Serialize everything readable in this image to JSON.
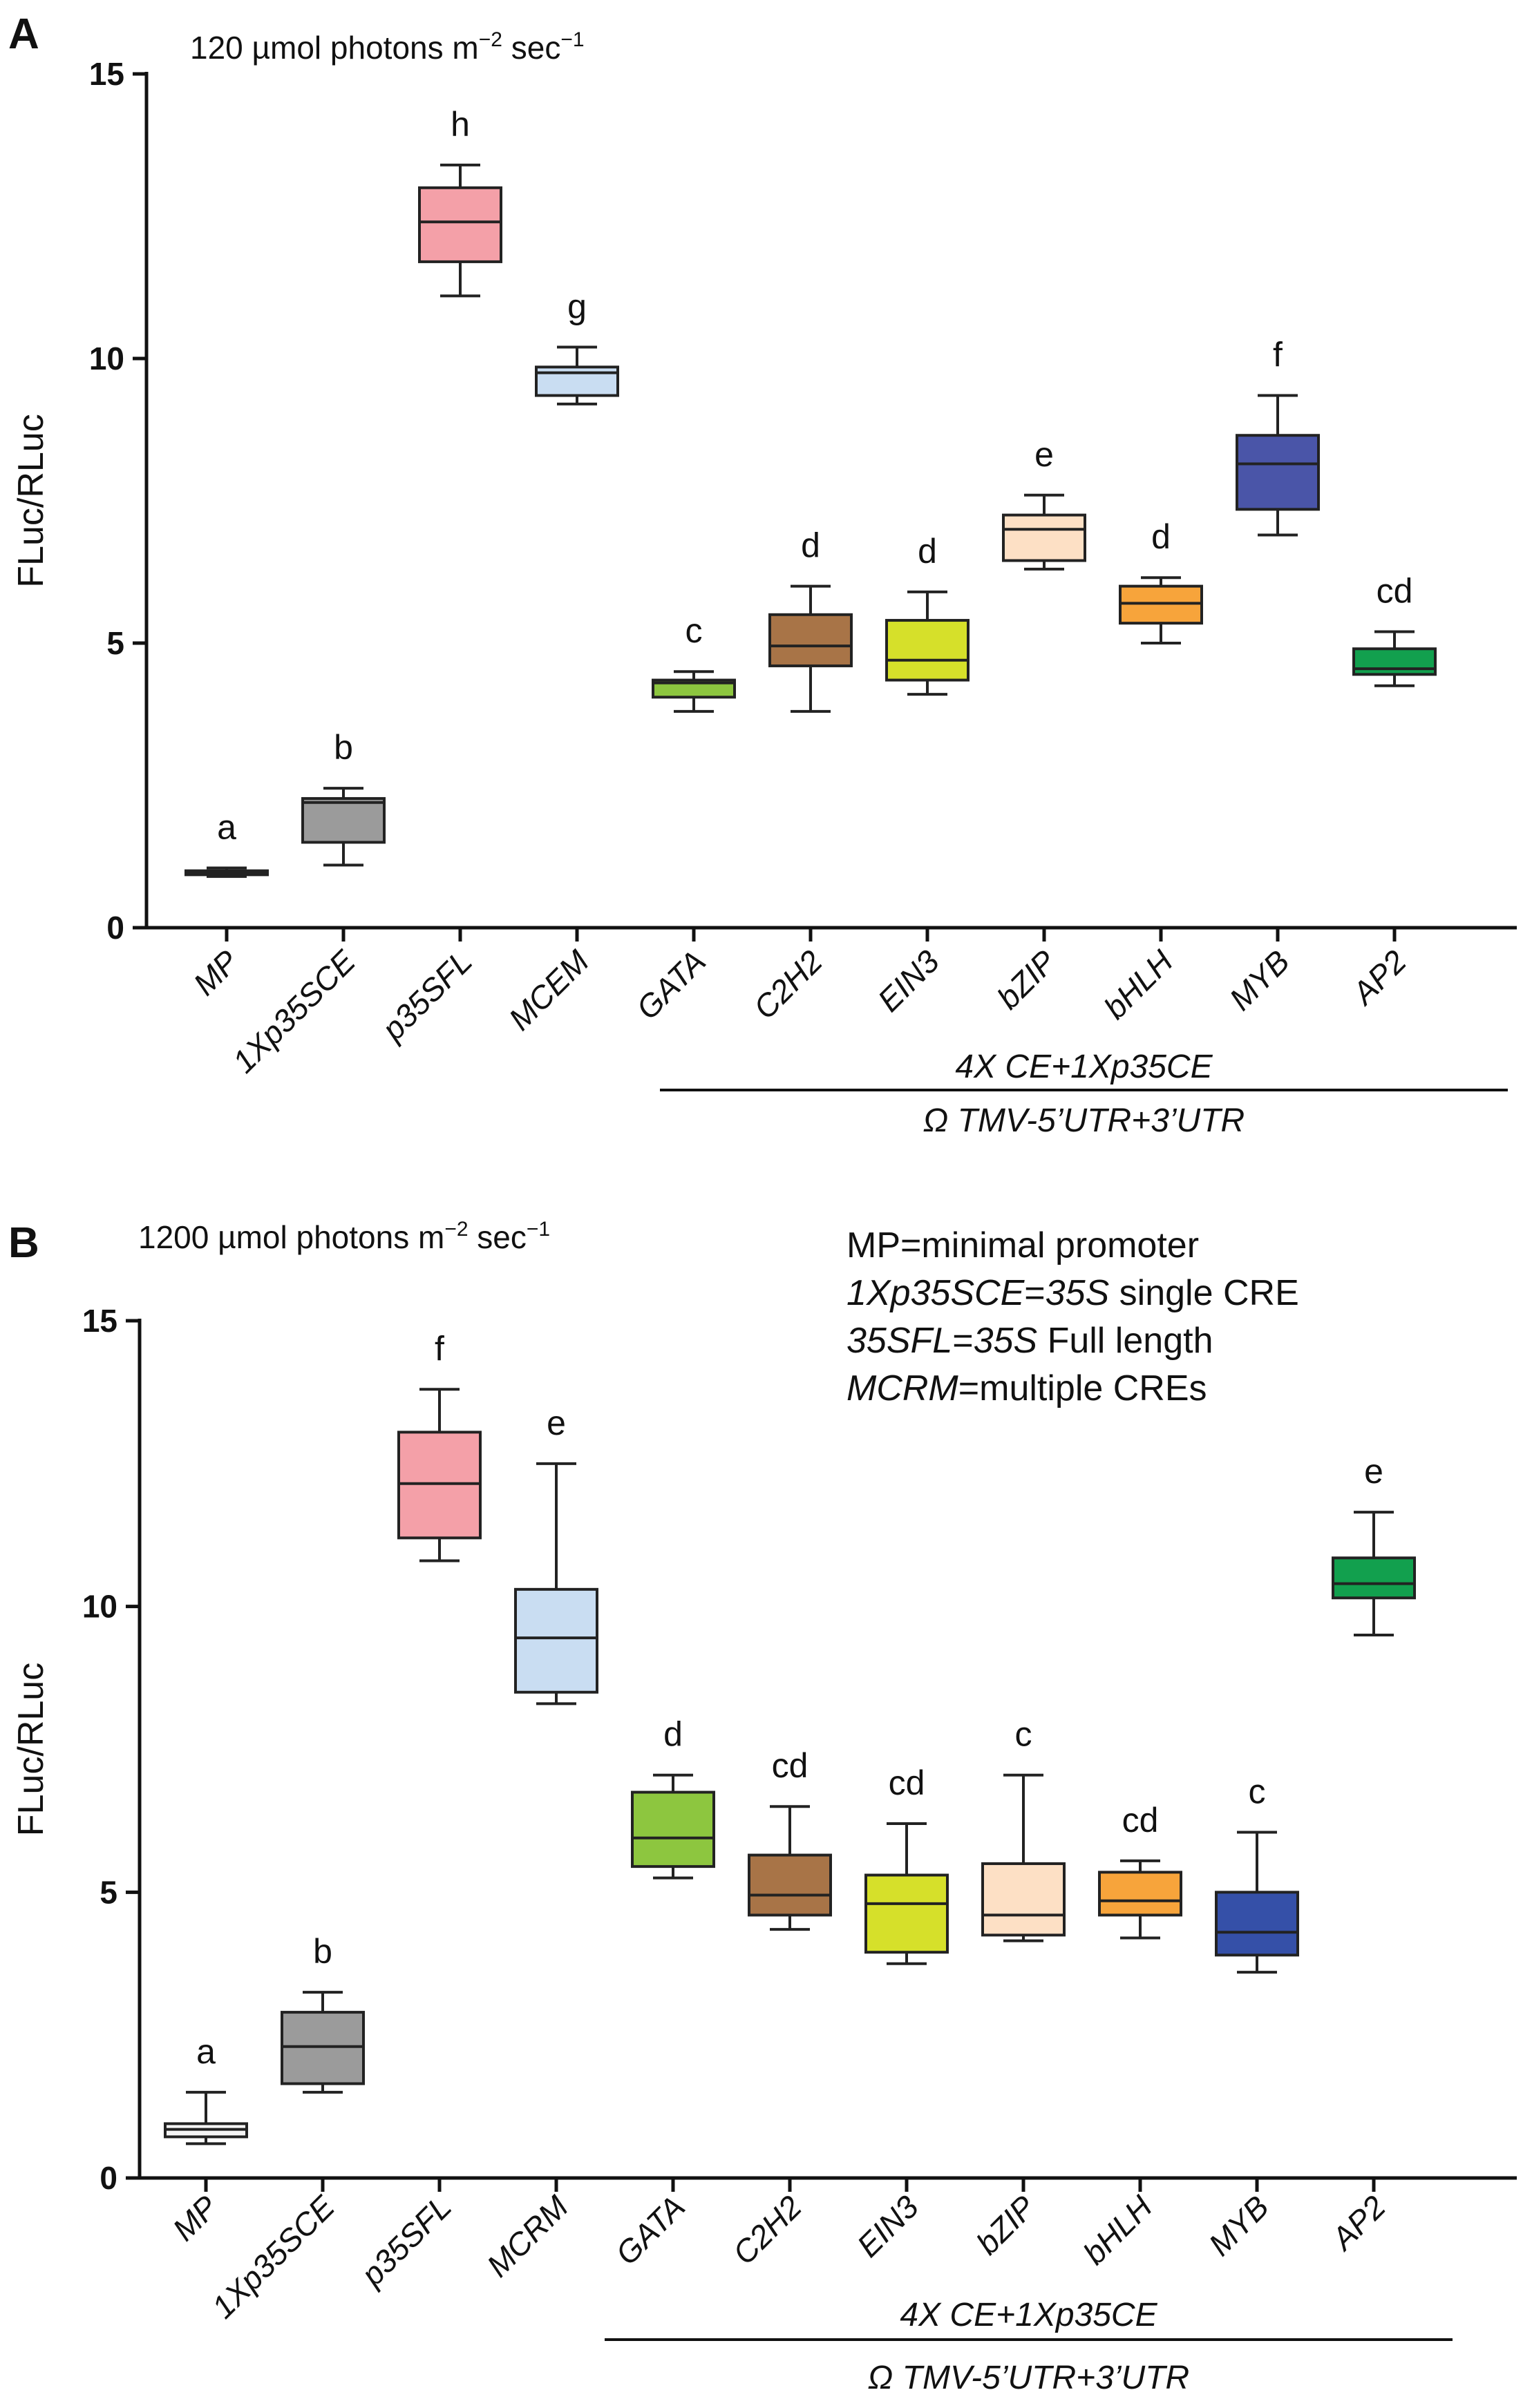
{
  "chart_data": [
    {
      "type": "box",
      "panel": "A",
      "light_condition": {
        "prefix": "120 µmol photons m",
        "exp1": "−2",
        "mid": " sec",
        "exp2": "−1"
      },
      "ylabel": "FLuc/RLuc",
      "ylim": [
        0,
        15
      ],
      "yticks": [
        0,
        5,
        10,
        15
      ],
      "group_label_top": "4X CE+1Xp35CE",
      "group_label_bottom": "Ω TMV-5’UTR+3’UTR",
      "categories": [
        "MP",
        "1Xp35SCE",
        "p35SFL",
        "MCEM",
        "GATA",
        "C2H2",
        "EIN3",
        "bZIP",
        "bHLH",
        "MYB",
        "AP2"
      ],
      "boxes": [
        {
          "name": "MP",
          "min": 0.9,
          "q1": 0.93,
          "median": 0.97,
          "q3": 1.0,
          "max": 1.05,
          "letter": "a",
          "color": "#f5f5f5"
        },
        {
          "name": "1Xp35SCE",
          "min": 1.1,
          "q1": 1.5,
          "median": 2.2,
          "q3": 2.27,
          "max": 2.45,
          "letter": "b",
          "color": "#9b9b9b"
        },
        {
          "name": "p35SFL",
          "min": 11.1,
          "q1": 11.7,
          "median": 12.4,
          "q3": 13.0,
          "max": 13.4,
          "letter": "h",
          "color": "#f4a0a8"
        },
        {
          "name": "MCEM",
          "min": 9.2,
          "q1": 9.35,
          "median": 9.75,
          "q3": 9.85,
          "max": 10.2,
          "letter": "g",
          "color": "#c9ddf2"
        },
        {
          "name": "GATA",
          "min": 3.8,
          "q1": 4.05,
          "median": 4.3,
          "q3": 4.35,
          "max": 4.5,
          "letter": "c",
          "color": "#8dc63f"
        },
        {
          "name": "C2H2",
          "min": 3.8,
          "q1": 4.6,
          "median": 4.95,
          "q3": 5.5,
          "max": 6.0,
          "letter": "d",
          "color": "#a87447"
        },
        {
          "name": "EIN3",
          "min": 4.1,
          "q1": 4.35,
          "median": 4.7,
          "q3": 5.4,
          "max": 5.9,
          "letter": "d",
          "color": "#d6e02a"
        },
        {
          "name": "bZIP",
          "min": 6.3,
          "q1": 6.45,
          "median": 7.0,
          "q3": 7.25,
          "max": 7.6,
          "letter": "e",
          "color": "#fde0c5"
        },
        {
          "name": "bHLH",
          "min": 5.0,
          "q1": 5.35,
          "median": 5.7,
          "q3": 6.0,
          "max": 6.15,
          "letter": "d",
          "color": "#f7a43b"
        },
        {
          "name": "MYB",
          "min": 6.9,
          "q1": 7.35,
          "median": 8.15,
          "q3": 8.65,
          "max": 9.35,
          "letter": "f",
          "color": "#4a55a8"
        },
        {
          "name": "AP2",
          "min": 4.25,
          "q1": 4.45,
          "median": 4.55,
          "q3": 4.9,
          "max": 5.2,
          "letter": "cd",
          "color": "#12a04e"
        }
      ]
    },
    {
      "type": "box",
      "panel": "B",
      "light_condition": {
        "prefix": "1200 µmol photons m",
        "exp1": "−2",
        "mid": " sec",
        "exp2": "−1"
      },
      "ylabel": "FLuc/RLuc",
      "ylim": [
        0,
        15
      ],
      "yticks": [
        0,
        5,
        10,
        15
      ],
      "group_label_top": "4X CE+1Xp35CE",
      "group_label_bottom": "Ω TMV-5’UTR+3’UTR",
      "legend": [
        {
          "abbr": "MP",
          "eq": "=",
          "def": "minimal promoter"
        },
        {
          "abbr": "1Xp35SCE",
          "eq": "=",
          "def_italic": "35S",
          "def": " single CRE"
        },
        {
          "abbr": "35SFL",
          "eq": "=",
          "def_italic": "35S",
          "def": " Full length"
        },
        {
          "abbr": "MCRM",
          "eq": "=",
          "def": "multiple CREs"
        }
      ],
      "categories": [
        "MP",
        "1Xp35SCE",
        "p35SFL",
        "MCRM",
        "GATA",
        "C2H2",
        "EIN3",
        "bZIP",
        "bHLH",
        "MYB",
        "AP2"
      ],
      "boxes": [
        {
          "name": "MP",
          "min": 0.6,
          "q1": 0.72,
          "median": 0.85,
          "q3": 0.95,
          "max": 1.5,
          "letter": "a",
          "color": "#f5f5f5"
        },
        {
          "name": "1Xp35SCE",
          "min": 1.5,
          "q1": 1.65,
          "median": 2.3,
          "q3": 2.9,
          "max": 3.25,
          "letter": "b",
          "color": "#9b9b9b"
        },
        {
          "name": "p35SFL",
          "min": 10.8,
          "q1": 11.2,
          "median": 12.15,
          "q3": 13.05,
          "max": 13.8,
          "letter": "f",
          "color": "#f4a0a8"
        },
        {
          "name": "MCRM",
          "min": 8.3,
          "q1": 8.5,
          "median": 9.45,
          "q3": 10.3,
          "max": 12.5,
          "letter": "e",
          "color": "#c9ddf2"
        },
        {
          "name": "GATA",
          "min": 5.25,
          "q1": 5.45,
          "median": 5.95,
          "q3": 6.75,
          "max": 7.05,
          "letter": "d",
          "color": "#8dc63f"
        },
        {
          "name": "C2H2",
          "min": 4.35,
          "q1": 4.6,
          "median": 4.95,
          "q3": 5.65,
          "max": 6.5,
          "letter": "cd",
          "color": "#a87447"
        },
        {
          "name": "EIN3",
          "min": 3.75,
          "q1": 3.95,
          "median": 4.8,
          "q3": 5.3,
          "max": 6.2,
          "letter": "cd",
          "color": "#d6e02a"
        },
        {
          "name": "bZIP",
          "min": 4.15,
          "q1": 4.25,
          "median": 4.6,
          "q3": 5.5,
          "max": 7.05,
          "letter": "c",
          "color": "#fde0c5"
        },
        {
          "name": "bHLH",
          "min": 4.2,
          "q1": 4.6,
          "median": 4.85,
          "q3": 5.35,
          "max": 5.55,
          "letter": "cd",
          "color": "#f7a43b"
        },
        {
          "name": "MYB",
          "min": 3.6,
          "q1": 3.9,
          "median": 4.3,
          "q3": 5.0,
          "max": 6.05,
          "letter": "c",
          "color": "#3550a8"
        },
        {
          "name": "AP2",
          "min": 9.5,
          "q1": 10.15,
          "median": 10.4,
          "q3": 10.85,
          "max": 11.65,
          "letter": "e",
          "color": "#12a04e"
        }
      ]
    }
  ],
  "panel_labels": [
    "A",
    "B"
  ]
}
